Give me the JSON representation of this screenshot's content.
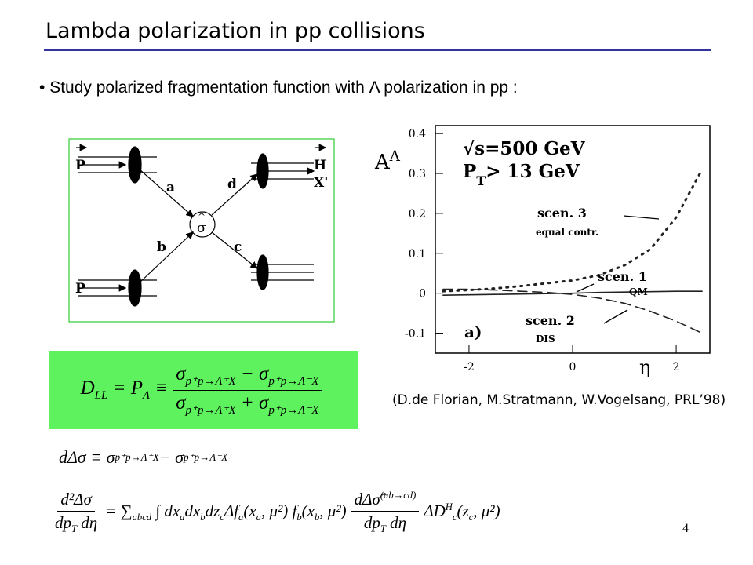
{
  "title": "Lambda polarization in pp collisions",
  "bullet": "Study polarized fragmentation function with Λ polarization in pp :",
  "diagram": {
    "labels": [
      "P",
      "a",
      "d",
      "H",
      "X'",
      "σ",
      "b",
      "c",
      "P"
    ]
  },
  "formula_dll": {
    "lhs": [
      {
        "text": "D"
      },
      {
        "text": "LL",
        "pos": "sub"
      },
      {
        "text": " = P"
      },
      {
        "text": "Λ",
        "pos": "sub"
      },
      {
        "text": " ≡"
      }
    ],
    "num": [
      {
        "text": "σ"
      },
      {
        "text": "p⁺p→Λ⁺X",
        "pos": "sub"
      },
      {
        "text": " − σ"
      },
      {
        "text": "p⁺p→Λ⁻X",
        "pos": "sub"
      }
    ],
    "den": [
      {
        "text": "σ"
      },
      {
        "text": "p⁺p→Λ⁺X",
        "pos": "sub"
      },
      {
        "text": " + σ"
      },
      {
        "text": "p⁺p→Λ⁻X",
        "pos": "sub"
      }
    ]
  },
  "formula_2": [
    {
      "text": "dΔσ ≡ σ"
    },
    {
      "text": "p⁺p→Λ⁺X",
      "pos": "sub"
    },
    {
      "text": " − σ"
    },
    {
      "text": "p⁺p→Λ⁻X",
      "pos": "sub"
    }
  ],
  "formula_3": [
    {
      "num": [
        {
          "text": "d²Δσ"
        }
      ],
      "den": [
        {
          "text": "dp"
        },
        {
          "text": "T",
          "pos": "sub"
        },
        {
          "text": " dη"
        }
      ]
    },
    {
      "segments": [
        {
          "text": " = ∑"
        },
        {
          "text": "abcd",
          "pos": "sub"
        },
        {
          "text": " ∫ dx"
        },
        {
          "text": "a",
          "pos": "sub"
        },
        {
          "text": "dx"
        },
        {
          "text": "b",
          "pos": "sub"
        },
        {
          "text": "dz"
        },
        {
          "text": "c",
          "pos": "sub"
        },
        {
          "text": "Δf"
        },
        {
          "text": "a",
          "pos": "sub"
        },
        {
          "text": "(x"
        },
        {
          "text": "a",
          "pos": "sub"
        },
        {
          "text": ", μ²) f"
        },
        {
          "text": "b",
          "pos": "sub"
        },
        {
          "text": "(x"
        },
        {
          "text": "b",
          "pos": "sub"
        },
        {
          "text": ", μ²) "
        }
      ]
    },
    {
      "num": [
        {
          "text": "dΔσ̂"
        },
        {
          "text": "(ab→cd)",
          "pos": "sup"
        }
      ],
      "den": [
        {
          "text": "dp"
        },
        {
          "text": "T",
          "pos": "sub"
        },
        {
          "text": " dη"
        }
      ]
    },
    {
      "segments": [
        {
          "text": " ΔD"
        },
        {
          "text": "H",
          "pos": "sup"
        },
        {
          "text": "c",
          "pos": "sub"
        },
        {
          "text": "(z"
        },
        {
          "text": "c",
          "pos": "sub"
        },
        {
          "text": ", μ²)"
        }
      ]
    }
  ],
  "citation": "(D.de Florian, M.Stratmann, W.Vogelsang, PRL’98)",
  "page_number": 4,
  "chart_data": {
    "type": "line",
    "ylabel": [
      {
        "text": "A"
      },
      {
        "text": "Λ",
        "pos": "sup"
      }
    ],
    "xlabel": "η",
    "annotations": [
      [
        {
          "text": "√s=500 GeV"
        }
      ],
      [
        {
          "text": "P"
        },
        {
          "text": "T",
          "pos": "sub"
        },
        {
          "text": "> 13 GeV"
        }
      ],
      [
        {
          "text": "a)"
        }
      ]
    ],
    "x": [
      -2.5,
      -2,
      -1.5,
      -1,
      -0.5,
      0,
      0.5,
      1,
      1.5,
      2,
      2.5
    ],
    "series": [
      {
        "name": "scen. 3",
        "note": "equal contr.",
        "color": "#222222",
        "dash": "dotted",
        "values": [
          0.005,
          0.008,
          0.012,
          0.018,
          0.025,
          0.032,
          0.045,
          0.07,
          0.11,
          0.19,
          0.31
        ]
      },
      {
        "name": "scen. 1",
        "note": "QM",
        "color": "#222222",
        "dash": "solid",
        "values": [
          -0.005,
          -0.004,
          -0.003,
          -0.002,
          -0.001,
          0,
          0.002,
          0.003,
          0.004,
          0.005,
          0.005
        ]
      },
      {
        "name": "scen. 2",
        "note": "DIS",
        "color": "#222222",
        "dash": "dashed",
        "values": [
          0.01,
          0.01,
          0.008,
          0.005,
          0.002,
          -0.003,
          -0.012,
          -0.025,
          -0.045,
          -0.07,
          -0.1
        ]
      }
    ],
    "xlim": [
      -2.65,
      2.65
    ],
    "xticks": [
      -2,
      0,
      2
    ],
    "ylim": [
      -0.15,
      0.42
    ],
    "yticks": [
      -0.1,
      0,
      0.1,
      0.2,
      0.3,
      0.4
    ]
  }
}
